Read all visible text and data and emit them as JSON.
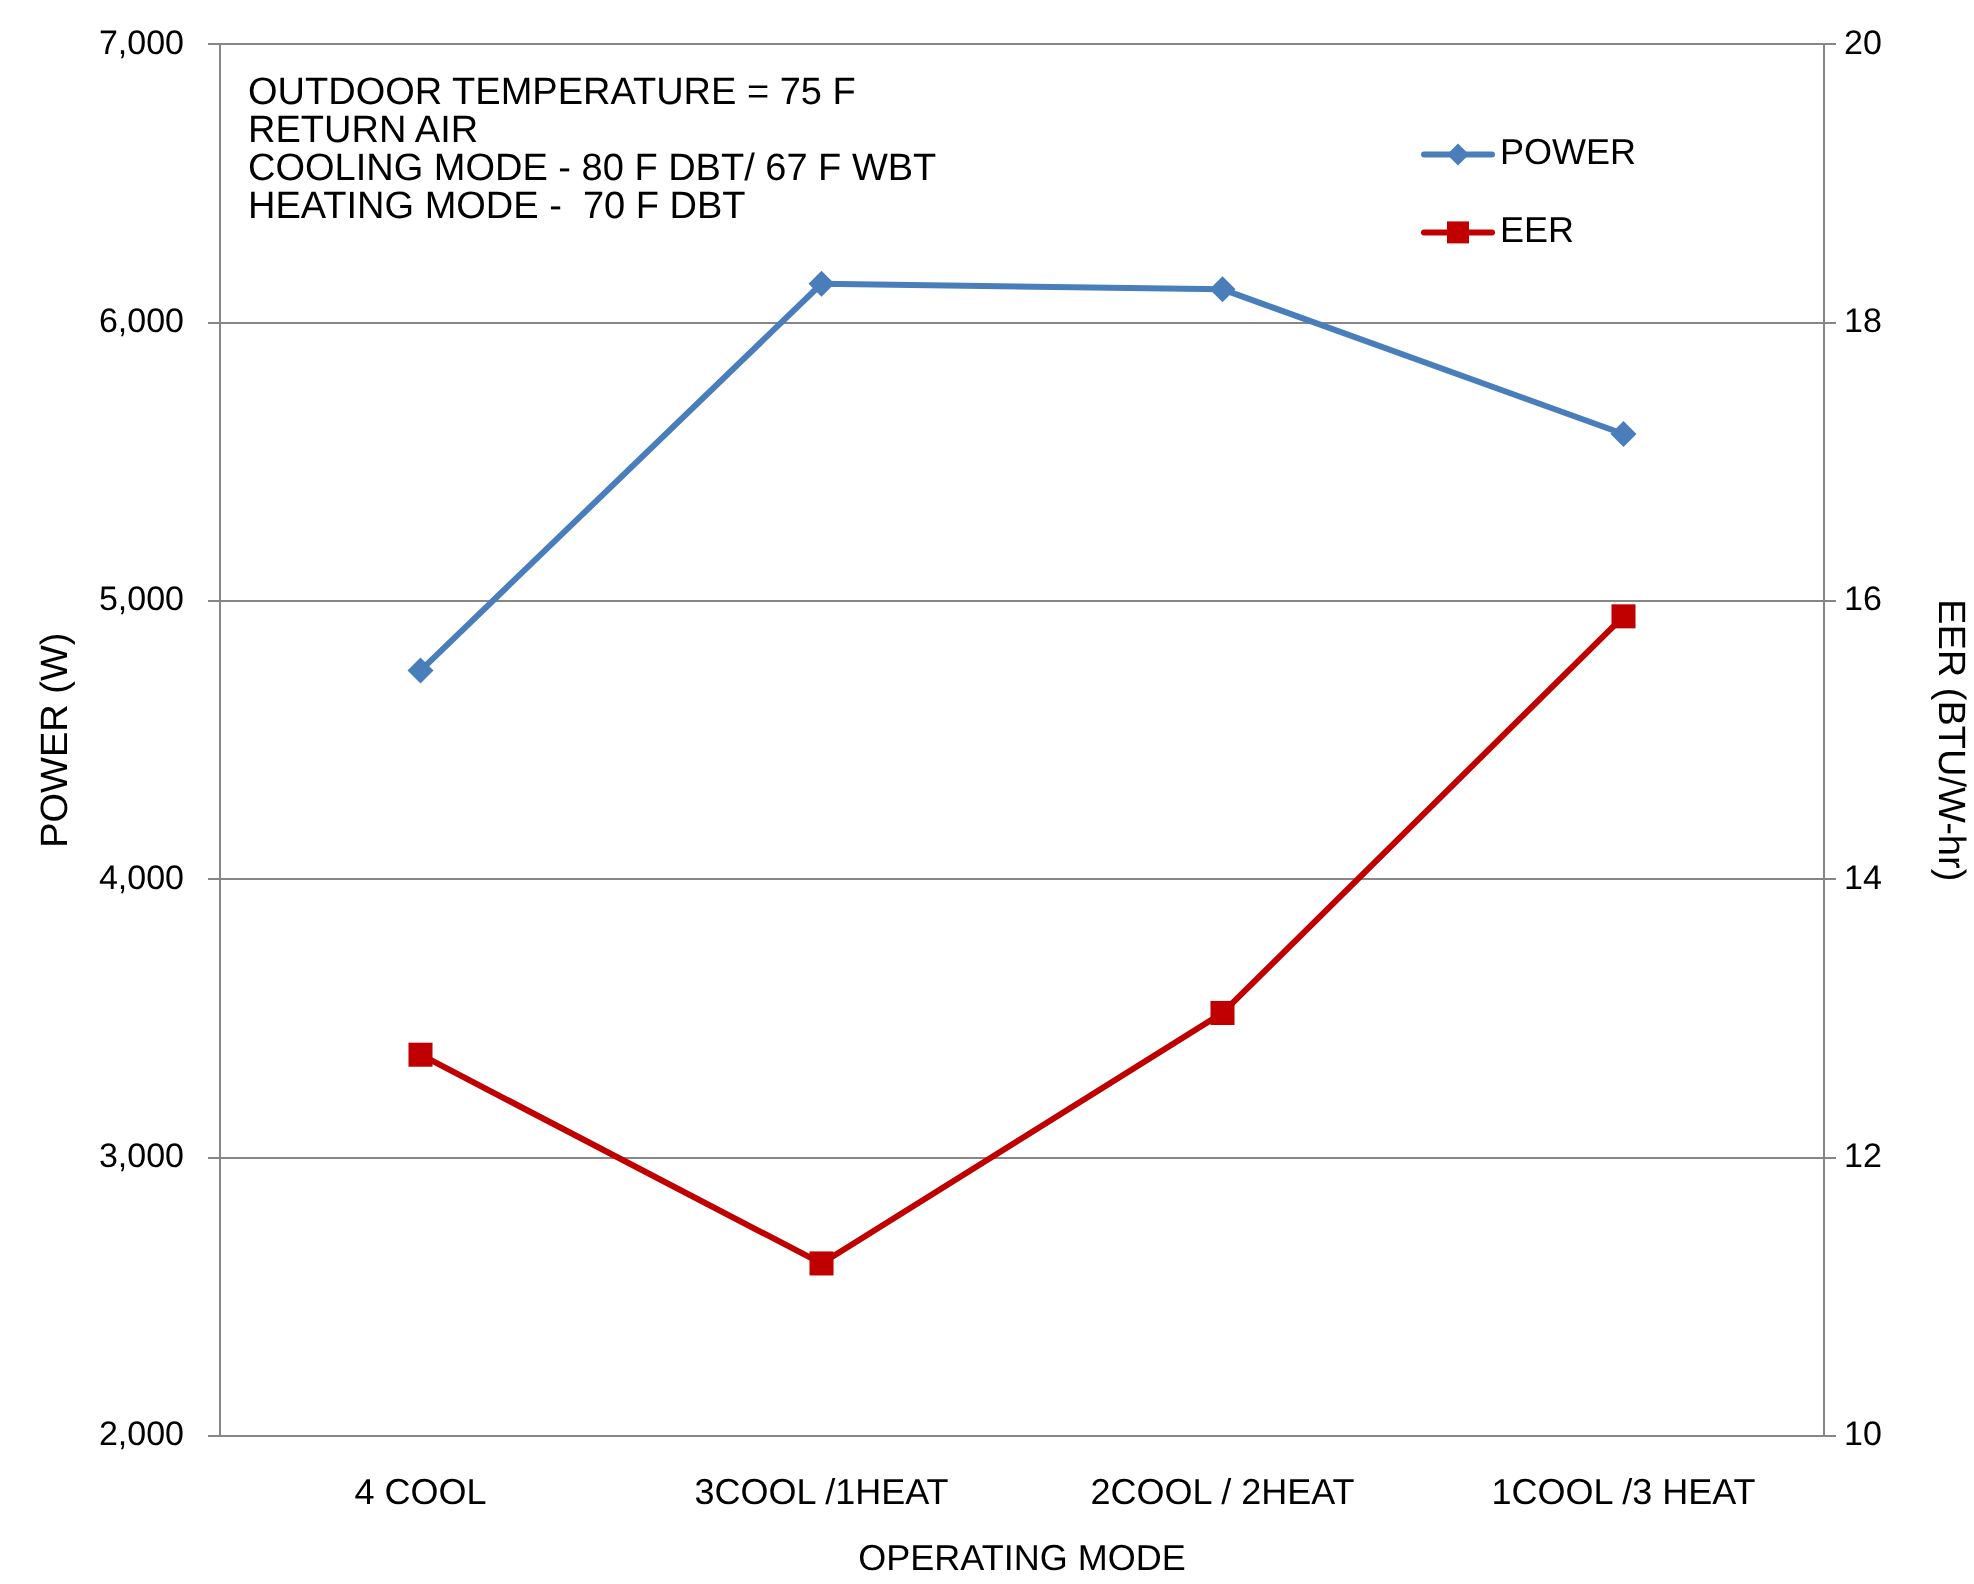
{
  "chart_data": {
    "type": "line",
    "categories": [
      "4 COOL",
      "3COOL /1HEAT",
      "2COOL / 2HEAT",
      "1COOL /3 HEAT"
    ],
    "xlabel": "OPERATING MODE",
    "ylabel": "POWER (W)",
    "y2label": "EER (BTU/W-hr)",
    "ylim": [
      2000,
      7000
    ],
    "yticks": [
      {
        "value": 2000,
        "label": "2,000"
      },
      {
        "value": 3000,
        "label": "3,000"
      },
      {
        "value": 4000,
        "label": "4,000"
      },
      {
        "value": 5000,
        "label": "5,000"
      },
      {
        "value": 6000,
        "label": "6,000"
      },
      {
        "value": 7000,
        "label": "7,000"
      }
    ],
    "y2lim": [
      10,
      20
    ],
    "y2ticks": [
      10,
      12,
      14,
      16,
      18,
      20
    ],
    "grid": "y",
    "legend": "top right",
    "line_style": "solid",
    "annotations": [
      "OUTDOOR TEMPERATURE = 75 F",
      "RETURN AIR",
      "COOLING MODE - 80 F DBT/ 67 F WBT",
      "HEATING MODE -  70 F DBT"
    ],
    "series": [
      {
        "name": "POWER",
        "color": "#4a7ebb",
        "marker": "diamond",
        "values": [
          4750,
          6140,
          6120,
          5600
        ]
      },
      {
        "name": "EER",
        "color": "#c00000",
        "marker": "square",
        "axis": "y2",
        "values": [
          12.74,
          11.24,
          13.04,
          15.89
        ]
      }
    ]
  }
}
